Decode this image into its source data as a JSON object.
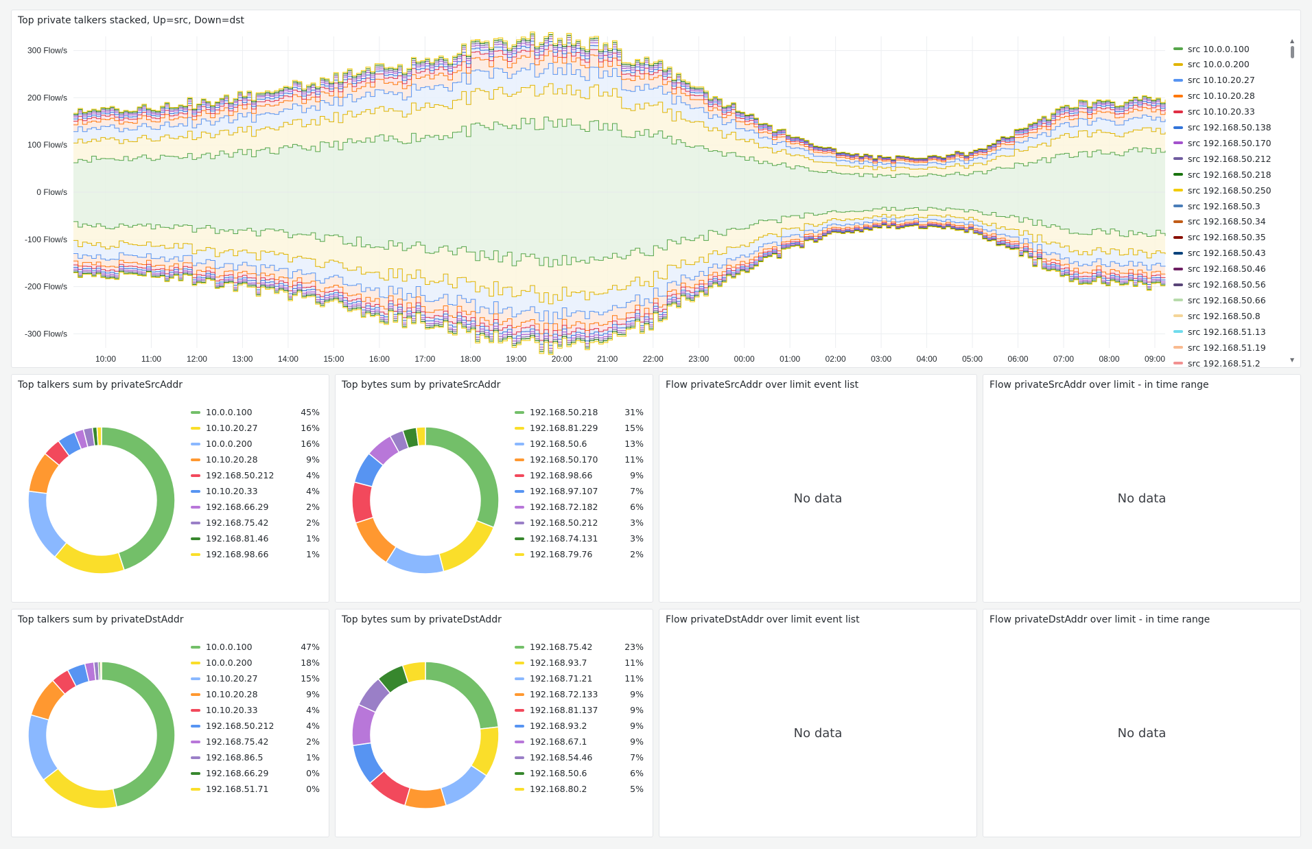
{
  "timeseries": {
    "title": "Top private talkers stacked, Up=src, Down=dst",
    "y_ticks": [
      "300 Flow/s",
      "200 Flow/s",
      "100 Flow/s",
      "0 Flow/s",
      "-100 Flow/s",
      "-200 Flow/s",
      "-300 Flow/s"
    ],
    "x_ticks": [
      "10:00",
      "11:00",
      "12:00",
      "13:00",
      "14:00",
      "15:00",
      "16:00",
      "17:00",
      "18:00",
      "19:00",
      "20:00",
      "21:00",
      "22:00",
      "23:00",
      "00:00",
      "01:00",
      "02:00",
      "03:00",
      "04:00",
      "05:00",
      "06:00",
      "07:00",
      "08:00",
      "09:00"
    ],
    "legend": [
      {
        "label": "src 10.0.0.100",
        "color": "#56a64b"
      },
      {
        "label": "src 10.0.0.200",
        "color": "#e0b400"
      },
      {
        "label": "src 10.10.20.27",
        "color": "#5794f2"
      },
      {
        "label": "src 10.10.20.28",
        "color": "#ff780a"
      },
      {
        "label": "src 10.10.20.33",
        "color": "#e02f44"
      },
      {
        "label": "src 192.168.50.138",
        "color": "#3274d9"
      },
      {
        "label": "src 192.168.50.170",
        "color": "#a352cc"
      },
      {
        "label": "src 192.168.50.212",
        "color": "#705da0"
      },
      {
        "label": "src 192.168.50.218",
        "color": "#19730e"
      },
      {
        "label": "src 192.168.50.250",
        "color": "#f2cc0c"
      },
      {
        "label": "src 192.168.50.3",
        "color": "#4a7db8"
      },
      {
        "label": "src 192.168.50.34",
        "color": "#c15c17"
      },
      {
        "label": "src 192.168.50.35",
        "color": "#890f02"
      },
      {
        "label": "src 192.168.50.43",
        "color": "#0a437c"
      },
      {
        "label": "src 192.168.50.46",
        "color": "#6d1f62"
      },
      {
        "label": "src 192.168.50.56",
        "color": "#584477"
      },
      {
        "label": "src 192.168.50.66",
        "color": "#b7dbab"
      },
      {
        "label": "src 192.168.50.8",
        "color": "#f4d598"
      },
      {
        "label": "src 192.168.51.13",
        "color": "#70dbed"
      },
      {
        "label": "src 192.168.51.19",
        "color": "#f9ba8f"
      },
      {
        "label": "src 192.168.51.2",
        "color": "#f29191"
      }
    ]
  },
  "pies": [
    {
      "title": "Top talkers sum by privateSrcAddr",
      "slices": [
        {
          "label": "10.0.0.100",
          "pct": "45%",
          "value": 45,
          "color": "#73bf69"
        },
        {
          "label": "10.10.20.27",
          "pct": "16%",
          "value": 16,
          "color": "#fade2a"
        },
        {
          "label": "10.0.0.200",
          "pct": "16%",
          "value": 16,
          "color": "#8ab8ff"
        },
        {
          "label": "10.10.20.28",
          "pct": "9%",
          "value": 9,
          "color": "#ff9830"
        },
        {
          "label": "192.168.50.212",
          "pct": "4%",
          "value": 4,
          "color": "#f2495c"
        },
        {
          "label": "10.10.20.33",
          "pct": "4%",
          "value": 4,
          "color": "#5794f2"
        },
        {
          "label": "192.168.66.29",
          "pct": "2%",
          "value": 2,
          "color": "#b877d9"
        },
        {
          "label": "192.168.75.42",
          "pct": "2%",
          "value": 2,
          "color": "#9a7fc7"
        },
        {
          "label": "192.168.81.46",
          "pct": "1%",
          "value": 1,
          "color": "#37872d"
        },
        {
          "label": "192.168.98.66",
          "pct": "1%",
          "value": 1,
          "color": "#fade2a"
        }
      ]
    },
    {
      "title": "Top bytes sum by privateSrcAddr",
      "slices": [
        {
          "label": "192.168.50.218",
          "pct": "31%",
          "value": 31,
          "color": "#73bf69"
        },
        {
          "label": "192.168.81.229",
          "pct": "15%",
          "value": 15,
          "color": "#fade2a"
        },
        {
          "label": "192.168.50.6",
          "pct": "13%",
          "value": 13,
          "color": "#8ab8ff"
        },
        {
          "label": "192.168.50.170",
          "pct": "11%",
          "value": 11,
          "color": "#ff9830"
        },
        {
          "label": "192.168.98.66",
          "pct": "9%",
          "value": 9,
          "color": "#f2495c"
        },
        {
          "label": "192.168.97.107",
          "pct": "7%",
          "value": 7,
          "color": "#5794f2"
        },
        {
          "label": "192.168.72.182",
          "pct": "6%",
          "value": 6,
          "color": "#b877d9"
        },
        {
          "label": "192.168.50.212",
          "pct": "3%",
          "value": 3,
          "color": "#9a7fc7"
        },
        {
          "label": "192.168.74.131",
          "pct": "3%",
          "value": 3,
          "color": "#37872d"
        },
        {
          "label": "192.168.79.76",
          "pct": "2%",
          "value": 2,
          "color": "#fade2a"
        }
      ]
    },
    {
      "title": "Top talkers sum by privateDstAddr",
      "slices": [
        {
          "label": "10.0.0.100",
          "pct": "47%",
          "value": 47,
          "color": "#73bf69"
        },
        {
          "label": "10.0.0.200",
          "pct": "18%",
          "value": 18,
          "color": "#fade2a"
        },
        {
          "label": "10.10.20.27",
          "pct": "15%",
          "value": 15,
          "color": "#8ab8ff"
        },
        {
          "label": "10.10.20.28",
          "pct": "9%",
          "value": 9,
          "color": "#ff9830"
        },
        {
          "label": "10.10.20.33",
          "pct": "4%",
          "value": 4,
          "color": "#f2495c"
        },
        {
          "label": "192.168.50.212",
          "pct": "4%",
          "value": 4,
          "color": "#5794f2"
        },
        {
          "label": "192.168.75.42",
          "pct": "2%",
          "value": 2,
          "color": "#b877d9"
        },
        {
          "label": "192.168.86.5",
          "pct": "1%",
          "value": 1,
          "color": "#9a7fc7"
        },
        {
          "label": "192.168.66.29",
          "pct": "0%",
          "value": 0.4,
          "color": "#37872d"
        },
        {
          "label": "192.168.51.71",
          "pct": "0%",
          "value": 0.3,
          "color": "#fade2a"
        }
      ]
    },
    {
      "title": "Top bytes sum by privateDstAddr",
      "slices": [
        {
          "label": "192.168.75.42",
          "pct": "23%",
          "value": 23,
          "color": "#73bf69"
        },
        {
          "label": "192.168.93.7",
          "pct": "11%",
          "value": 11,
          "color": "#fade2a"
        },
        {
          "label": "192.168.71.21",
          "pct": "11%",
          "value": 11,
          "color": "#8ab8ff"
        },
        {
          "label": "192.168.72.133",
          "pct": "9%",
          "value": 9,
          "color": "#ff9830"
        },
        {
          "label": "192.168.81.137",
          "pct": "9%",
          "value": 9,
          "color": "#f2495c"
        },
        {
          "label": "192.168.93.2",
          "pct": "9%",
          "value": 9,
          "color": "#5794f2"
        },
        {
          "label": "192.168.67.1",
          "pct": "9%",
          "value": 9,
          "color": "#b877d9"
        },
        {
          "label": "192.168.54.46",
          "pct": "7%",
          "value": 7,
          "color": "#9a7fc7"
        },
        {
          "label": "192.168.50.6",
          "pct": "6%",
          "value": 6,
          "color": "#37872d"
        },
        {
          "label": "192.168.80.2",
          "pct": "5%",
          "value": 5,
          "color": "#fade2a"
        }
      ]
    }
  ],
  "event_panels": [
    {
      "title": "Flow privateSrcAddr over limit event list",
      "message": "No data"
    },
    {
      "title": "Flow privateSrcAddr over limit - in time range",
      "message": "No data"
    },
    {
      "title": "Flow privateDstAddr over limit event list",
      "message": "No data"
    },
    {
      "title": "Flow privateDstAddr over limit - in time range",
      "message": "No data"
    }
  ],
  "chart_data": [
    {
      "type": "area",
      "title": "Top private talkers stacked, Up=src, Down=dst",
      "x": [
        "10:00",
        "11:00",
        "12:00",
        "13:00",
        "14:00",
        "15:00",
        "16:00",
        "17:00",
        "18:00",
        "19:00",
        "20:00",
        "21:00",
        "22:00",
        "23:00",
        "00:00",
        "01:00",
        "02:00",
        "03:00",
        "04:00",
        "05:00",
        "06:00",
        "07:00",
        "08:00",
        "09:00"
      ],
      "ylabel": "",
      "ylim": [
        -330,
        330
      ],
      "series": [
        {
          "name": "src 10.0.0.100",
          "values": [
            70,
            72,
            75,
            80,
            85,
            95,
            105,
            115,
            125,
            140,
            145,
            140,
            125,
            100,
            75,
            55,
            40,
            35,
            35,
            40,
            60,
            80,
            85,
            85
          ]
        },
        {
          "name": "src 10.0.0.200",
          "values": [
            40,
            40,
            42,
            45,
            48,
            52,
            58,
            62,
            68,
            72,
            72,
            70,
            62,
            50,
            38,
            26,
            18,
            15,
            15,
            18,
            30,
            40,
            42,
            42
          ]
        },
        {
          "name": "src 10.10.20.27",
          "values": [
            25,
            25,
            26,
            28,
            30,
            32,
            35,
            38,
            40,
            42,
            42,
            41,
            38,
            31,
            24,
            16,
            11,
            9,
            9,
            11,
            18,
            25,
            26,
            26
          ]
        },
        {
          "name": "src 10.10.20.28",
          "values": [
            15,
            15,
            16,
            17,
            18,
            19,
            21,
            22,
            24,
            25,
            25,
            24,
            22,
            18,
            14,
            10,
            7,
            6,
            6,
            7,
            11,
            15,
            16,
            16
          ]
        },
        {
          "name": "src 10.10.20.33",
          "values": [
            8,
            8,
            8,
            9,
            9,
            10,
            11,
            12,
            12,
            13,
            13,
            12,
            11,
            9,
            7,
            5,
            4,
            3,
            3,
            4,
            6,
            8,
            8,
            8
          ]
        },
        {
          "name": "src 192.168.50.138",
          "values": [
            5,
            5,
            5,
            5,
            6,
            6,
            6,
            7,
            7,
            8,
            8,
            8,
            7,
            6,
            4,
            3,
            2,
            2,
            2,
            2,
            4,
            5,
            5,
            5
          ]
        },
        {
          "name": "src 192.168.50.170",
          "values": [
            4,
            4,
            4,
            4,
            5,
            5,
            5,
            5,
            6,
            6,
            6,
            6,
            5,
            4,
            3,
            2,
            2,
            1,
            1,
            2,
            3,
            4,
            4,
            4
          ]
        },
        {
          "name": "src 192.168.50.212",
          "values": [
            3,
            3,
            3,
            3,
            3,
            4,
            4,
            4,
            4,
            5,
            5,
            5,
            4,
            3,
            3,
            2,
            1,
            1,
            1,
            1,
            2,
            3,
            3,
            3
          ]
        },
        {
          "name": "src 192.168.50.218",
          "values": [
            3,
            3,
            3,
            3,
            3,
            3,
            4,
            4,
            4,
            4,
            4,
            4,
            4,
            3,
            2,
            2,
            1,
            1,
            1,
            1,
            2,
            3,
            3,
            3
          ]
        },
        {
          "name": "src 192.168.50.250",
          "values": [
            2,
            2,
            2,
            2,
            3,
            3,
            3,
            3,
            3,
            4,
            4,
            4,
            3,
            3,
            2,
            1,
            1,
            1,
            1,
            1,
            2,
            2,
            2,
            2
          ]
        }
      ]
    },
    {
      "type": "pie",
      "title": "Top talkers sum by privateSrcAddr",
      "categories": [
        "10.0.0.100",
        "10.10.20.27",
        "10.0.0.200",
        "10.10.20.28",
        "192.168.50.212",
        "10.10.20.33",
        "192.168.66.29",
        "192.168.75.42",
        "192.168.81.46",
        "192.168.98.66"
      ],
      "values": [
        45,
        16,
        16,
        9,
        4,
        4,
        2,
        2,
        1,
        1
      ]
    },
    {
      "type": "pie",
      "title": "Top bytes sum by privateSrcAddr",
      "categories": [
        "192.168.50.218",
        "192.168.81.229",
        "192.168.50.6",
        "192.168.50.170",
        "192.168.98.66",
        "192.168.97.107",
        "192.168.72.182",
        "192.168.50.212",
        "192.168.74.131",
        "192.168.79.76"
      ],
      "values": [
        31,
        15,
        13,
        11,
        9,
        7,
        6,
        3,
        3,
        2
      ]
    },
    {
      "type": "pie",
      "title": "Top talkers sum by privateDstAddr",
      "categories": [
        "10.0.0.100",
        "10.0.0.200",
        "10.10.20.27",
        "10.10.20.28",
        "10.10.20.33",
        "192.168.50.212",
        "192.168.75.42",
        "192.168.86.5",
        "192.168.66.29",
        "192.168.51.71"
      ],
      "values": [
        47,
        18,
        15,
        9,
        4,
        4,
        2,
        1,
        0.4,
        0.3
      ]
    },
    {
      "type": "pie",
      "title": "Top bytes sum by privateDstAddr",
      "categories": [
        "192.168.75.42",
        "192.168.93.7",
        "192.168.71.21",
        "192.168.72.133",
        "192.168.81.137",
        "192.168.93.2",
        "192.168.67.1",
        "192.168.54.46",
        "192.168.50.6",
        "192.168.80.2"
      ],
      "values": [
        23,
        11,
        11,
        9,
        9,
        9,
        9,
        7,
        6,
        5
      ]
    }
  ]
}
